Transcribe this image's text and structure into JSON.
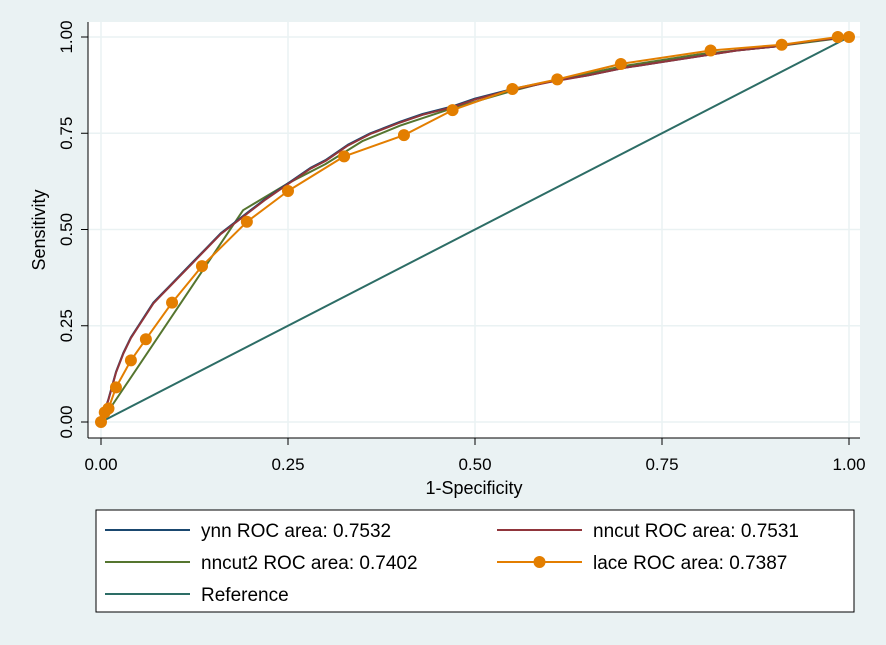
{
  "chart_data": {
    "type": "line",
    "xlabel": "1-Specificity",
    "ylabel": "Sensitivity",
    "xlim": [
      0,
      1
    ],
    "ylim": [
      0,
      1
    ],
    "x_ticks": [
      "0.00",
      "0.25",
      "0.50",
      "0.75",
      "1.00"
    ],
    "y_ticks": [
      "0.00",
      "0.25",
      "0.50",
      "0.75",
      "1.00"
    ],
    "grid": true,
    "legend_position": "bottom",
    "series": [
      {
        "name": "ynn ROC area: 0.7532",
        "color": "#1a476f",
        "marker": false,
        "x": [
          0,
          0.005,
          0.01,
          0.02,
          0.03,
          0.04,
          0.05,
          0.06,
          0.07,
          0.08,
          0.09,
          0.1,
          0.12,
          0.14,
          0.16,
          0.18,
          0.2,
          0.22,
          0.25,
          0.28,
          0.3,
          0.33,
          0.36,
          0.4,
          0.43,
          0.47,
          0.5,
          0.55,
          0.6,
          0.65,
          0.7,
          0.75,
          0.8,
          0.85,
          0.9,
          0.95,
          1.0
        ],
        "y": [
          0,
          0.03,
          0.06,
          0.13,
          0.18,
          0.22,
          0.25,
          0.28,
          0.31,
          0.33,
          0.35,
          0.37,
          0.41,
          0.45,
          0.49,
          0.52,
          0.55,
          0.58,
          0.62,
          0.66,
          0.68,
          0.72,
          0.75,
          0.78,
          0.8,
          0.82,
          0.84,
          0.865,
          0.885,
          0.9,
          0.92,
          0.935,
          0.95,
          0.965,
          0.975,
          0.99,
          1.0
        ]
      },
      {
        "name": "nncut ROC area: 0.7531",
        "color": "#90353b",
        "marker": false,
        "x": [
          0,
          0.005,
          0.01,
          0.02,
          0.03,
          0.04,
          0.05,
          0.06,
          0.07,
          0.08,
          0.09,
          0.1,
          0.12,
          0.14,
          0.16,
          0.18,
          0.2,
          0.22,
          0.25,
          0.28,
          0.3,
          0.33,
          0.36,
          0.4,
          0.43,
          0.47,
          0.5,
          0.55,
          0.6,
          0.65,
          0.7,
          0.75,
          0.8,
          0.85,
          0.9,
          0.95,
          1.0
        ],
        "y": [
          0,
          0.028,
          0.058,
          0.128,
          0.178,
          0.218,
          0.248,
          0.278,
          0.308,
          0.328,
          0.348,
          0.368,
          0.408,
          0.448,
          0.488,
          0.518,
          0.548,
          0.578,
          0.618,
          0.658,
          0.678,
          0.718,
          0.748,
          0.778,
          0.798,
          0.818,
          0.838,
          0.863,
          0.883,
          0.9,
          0.92,
          0.935,
          0.95,
          0.965,
          0.975,
          0.99,
          1.0
        ]
      },
      {
        "name": "nncut2 ROC area: 0.7402",
        "color": "#55752f",
        "marker": false,
        "x": [
          0,
          0.19,
          0.25,
          0.3,
          0.35,
          0.4,
          0.47,
          0.55,
          0.6,
          0.7,
          0.8,
          0.9,
          1.0
        ],
        "y": [
          0,
          0.55,
          0.62,
          0.67,
          0.73,
          0.77,
          0.815,
          0.86,
          0.885,
          0.925,
          0.955,
          0.975,
          1.0
        ]
      },
      {
        "name": "lace ROC area: 0.7387",
        "color": "#e37e00",
        "marker": true,
        "x": [
          0,
          0.005,
          0.01,
          0.02,
          0.04,
          0.06,
          0.095,
          0.135,
          0.195,
          0.25,
          0.325,
          0.405,
          0.47,
          0.55,
          0.61,
          0.695,
          0.815,
          0.91,
          0.985,
          1.0
        ],
        "y": [
          0,
          0.025,
          0.035,
          0.09,
          0.16,
          0.215,
          0.31,
          0.405,
          0.52,
          0.6,
          0.69,
          0.745,
          0.81,
          0.865,
          0.89,
          0.93,
          0.965,
          0.98,
          1.0,
          1.0
        ]
      },
      {
        "name": "Reference",
        "color": "#2d6d66",
        "marker": false,
        "x": [
          0,
          1
        ],
        "y": [
          0,
          1
        ]
      }
    ]
  }
}
